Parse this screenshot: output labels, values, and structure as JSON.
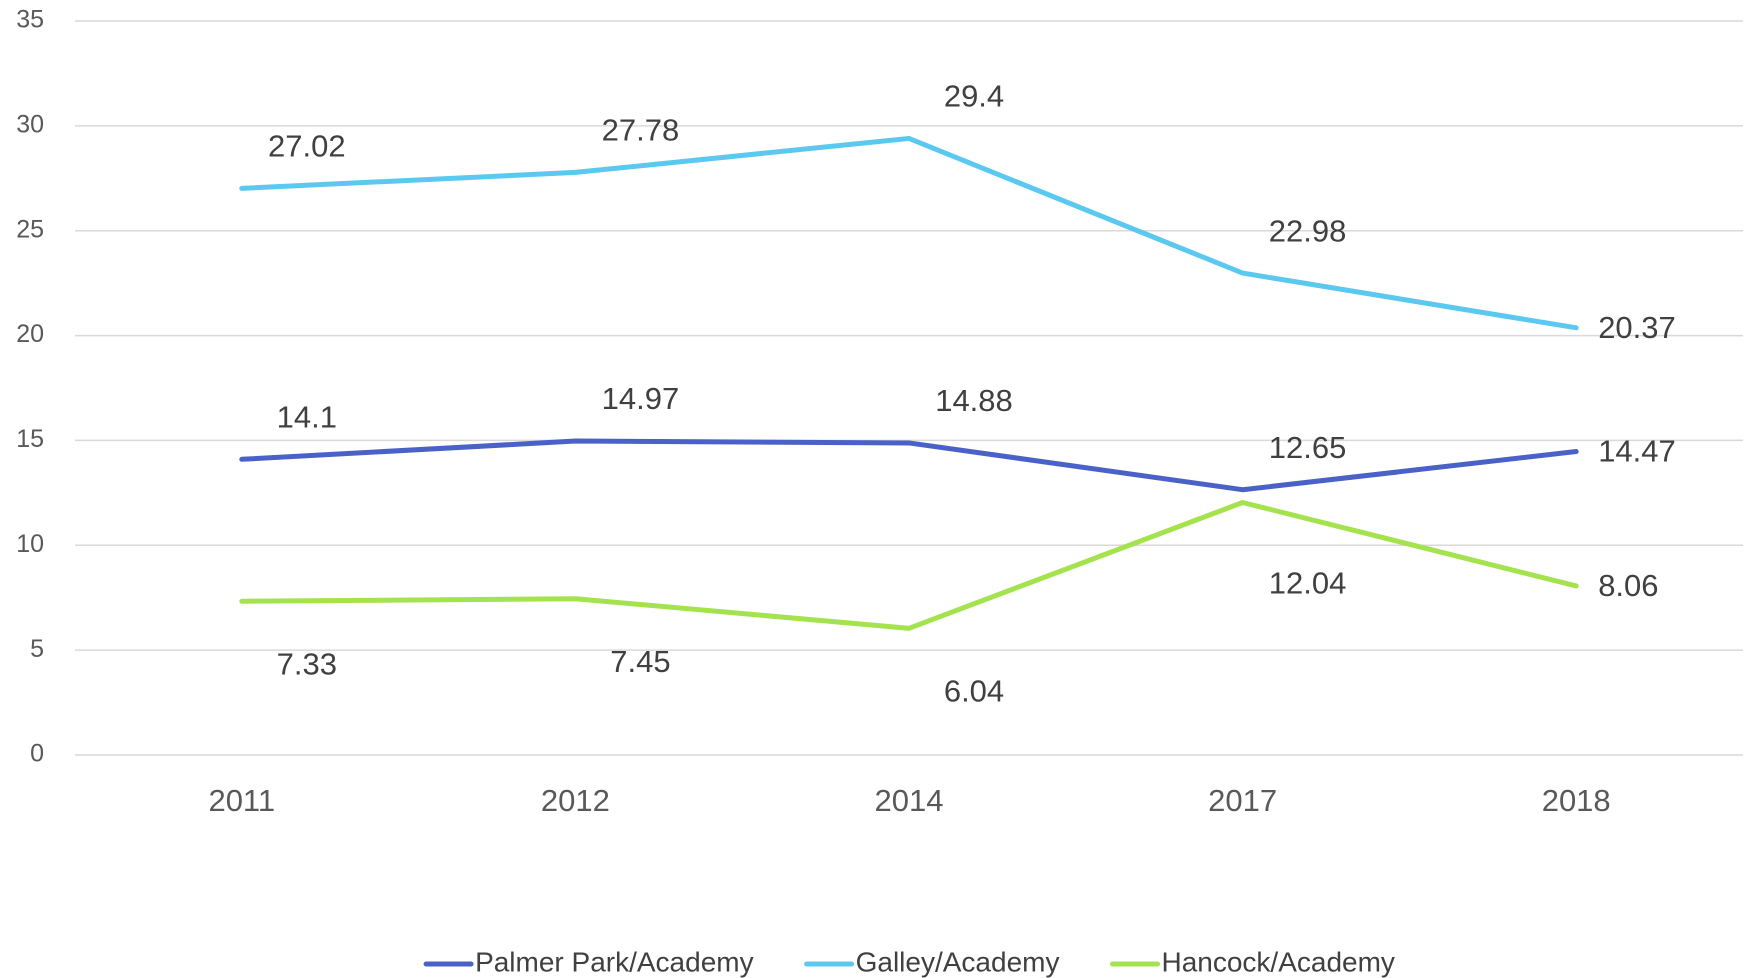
{
  "chart_data": {
    "type": "line",
    "categories": [
      "2011",
      "2012",
      "2014",
      "2017",
      "2018"
    ],
    "series": [
      {
        "name": "Palmer Park/Academy",
        "color": "#4a62c8",
        "values": [
          14.1,
          14.97,
          14.88,
          12.65,
          14.47
        ]
      },
      {
        "name": "Galley/Academy",
        "color": "#5bc8f0",
        "values": [
          27.02,
          27.78,
          29.4,
          22.98,
          20.37
        ]
      },
      {
        "name": "Hancock/Academy",
        "color": "#a4e24e",
        "values": [
          7.33,
          7.45,
          6.04,
          12.04,
          8.06
        ]
      }
    ],
    "ylim": [
      0,
      35
    ],
    "yticks": [
      0,
      5,
      10,
      15,
      20,
      25,
      30,
      35
    ],
    "grid": true,
    "legend": "bottom"
  }
}
